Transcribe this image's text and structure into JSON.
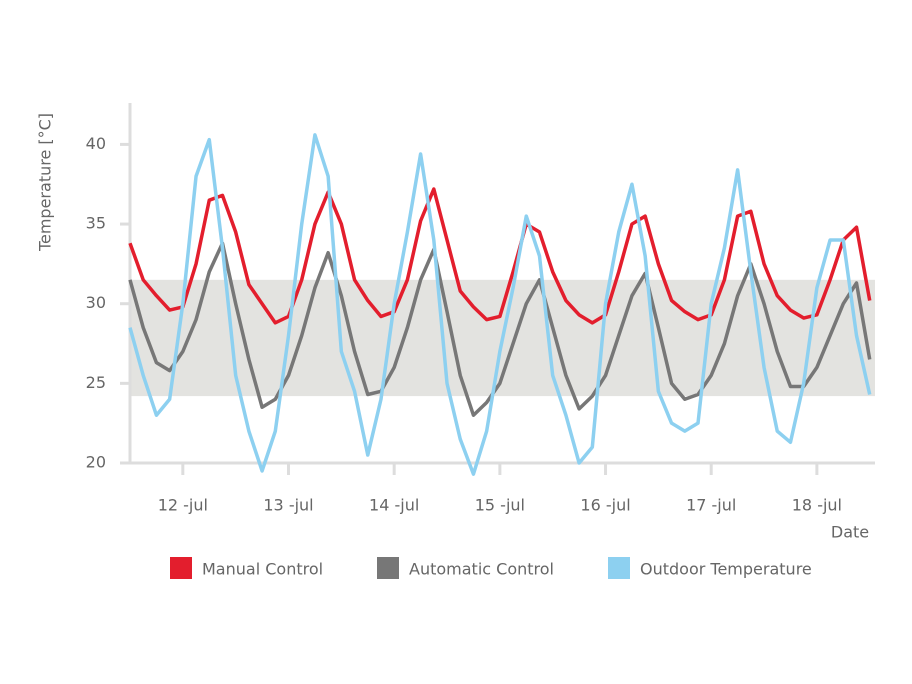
{
  "chart_data": {
    "type": "line",
    "x_label": "Date",
    "y_label": "Temperature [°C]",
    "x": [
      11.5,
      11.625,
      11.75,
      11.875,
      12,
      12.125,
      12.25,
      12.375,
      12.5,
      12.625,
      12.75,
      12.875,
      13,
      13.125,
      13.25,
      13.375,
      13.5,
      13.625,
      13.75,
      13.875,
      14,
      14.125,
      14.25,
      14.375,
      14.5,
      14.625,
      14.75,
      14.875,
      15,
      15.125,
      15.25,
      15.375,
      15.5,
      15.625,
      15.75,
      15.875,
      16,
      16.125,
      16.25,
      16.375,
      16.5,
      16.625,
      16.75,
      16.875,
      17,
      17.125,
      17.25,
      17.375,
      17.5,
      17.625,
      17.75,
      17.875,
      18,
      18.125,
      18.25,
      18.375,
      18.5
    ],
    "series": [
      {
        "name": "Manual Control",
        "color": "#e31e2d",
        "values": [
          33.8,
          31.5,
          30.5,
          29.6,
          29.8,
          32.5,
          36.5,
          36.8,
          34.5,
          31.2,
          30,
          28.8,
          29.2,
          31.5,
          35,
          37,
          35,
          31.5,
          30.2,
          29.2,
          29.5,
          31.5,
          35.2,
          37.2,
          34,
          30.8,
          29.8,
          29,
          29.2,
          32,
          35,
          34.5,
          32,
          30.2,
          29.3,
          28.8,
          29.3,
          32,
          35,
          35.5,
          32.5,
          30.2,
          29.5,
          29,
          29.3,
          31.5,
          35.5,
          35.8,
          32.5,
          30.5,
          29.6,
          29.1,
          29.3,
          31.5,
          34,
          34.8,
          30.2
        ]
      },
      {
        "name": "Automatic Control",
        "color": "#777777",
        "values": [
          31.5,
          28.5,
          26.3,
          25.8,
          27,
          29,
          32,
          33.8,
          30,
          26.5,
          23.5,
          24,
          25.5,
          28,
          31,
          33.2,
          30.5,
          27,
          24.3,
          24.5,
          26,
          28.5,
          31.5,
          33.4,
          29.5,
          25.5,
          23,
          23.8,
          25,
          27.5,
          30,
          31.5,
          28.5,
          25.5,
          23.4,
          24.2,
          25.5,
          28,
          30.5,
          31.9,
          28.5,
          25,
          24,
          24.3,
          25.5,
          27.5,
          30.5,
          32.5,
          30,
          27,
          24.8,
          24.8,
          26,
          28,
          30,
          31.3,
          26.5
        ]
      },
      {
        "name": "Outdoor Temperature",
        "color": "#8dd0f0",
        "values": [
          28.5,
          25.5,
          23,
          24,
          30,
          38,
          40.3,
          33.5,
          25.5,
          22,
          19.5,
          22,
          28,
          35,
          40.6,
          38,
          27,
          24.5,
          20.5,
          24,
          30,
          34.5,
          39.4,
          34,
          25,
          21.5,
          19.3,
          22,
          27,
          31,
          35.5,
          33,
          25.5,
          23,
          20,
          21,
          30,
          34.5,
          37.5,
          33,
          24.5,
          22.5,
          22,
          22.5,
          30,
          33.5,
          38.4,
          32,
          26,
          22,
          21.3,
          25,
          31,
          34,
          34,
          28,
          24.3
        ]
      }
    ],
    "band": [
      24.2,
      31.5
    ],
    "band_color": "#e3e3e0",
    "xlim": [
      11.5,
      18.55
    ],
    "ylim": [
      20,
      42.6
    ],
    "xticks": [
      {
        "value": 12,
        "label": "12 -jul"
      },
      {
        "value": 13,
        "label": "13 -jul"
      },
      {
        "value": 14,
        "label": "14 -jul"
      },
      {
        "value": 15,
        "label": "15 -jul"
      },
      {
        "value": 16,
        "label": "16 -jul"
      },
      {
        "value": 17,
        "label": "17 -jul"
      },
      {
        "value": 18,
        "label": "18 -jul"
      }
    ],
    "yticks": [
      20,
      25,
      30,
      35,
      40
    ]
  }
}
